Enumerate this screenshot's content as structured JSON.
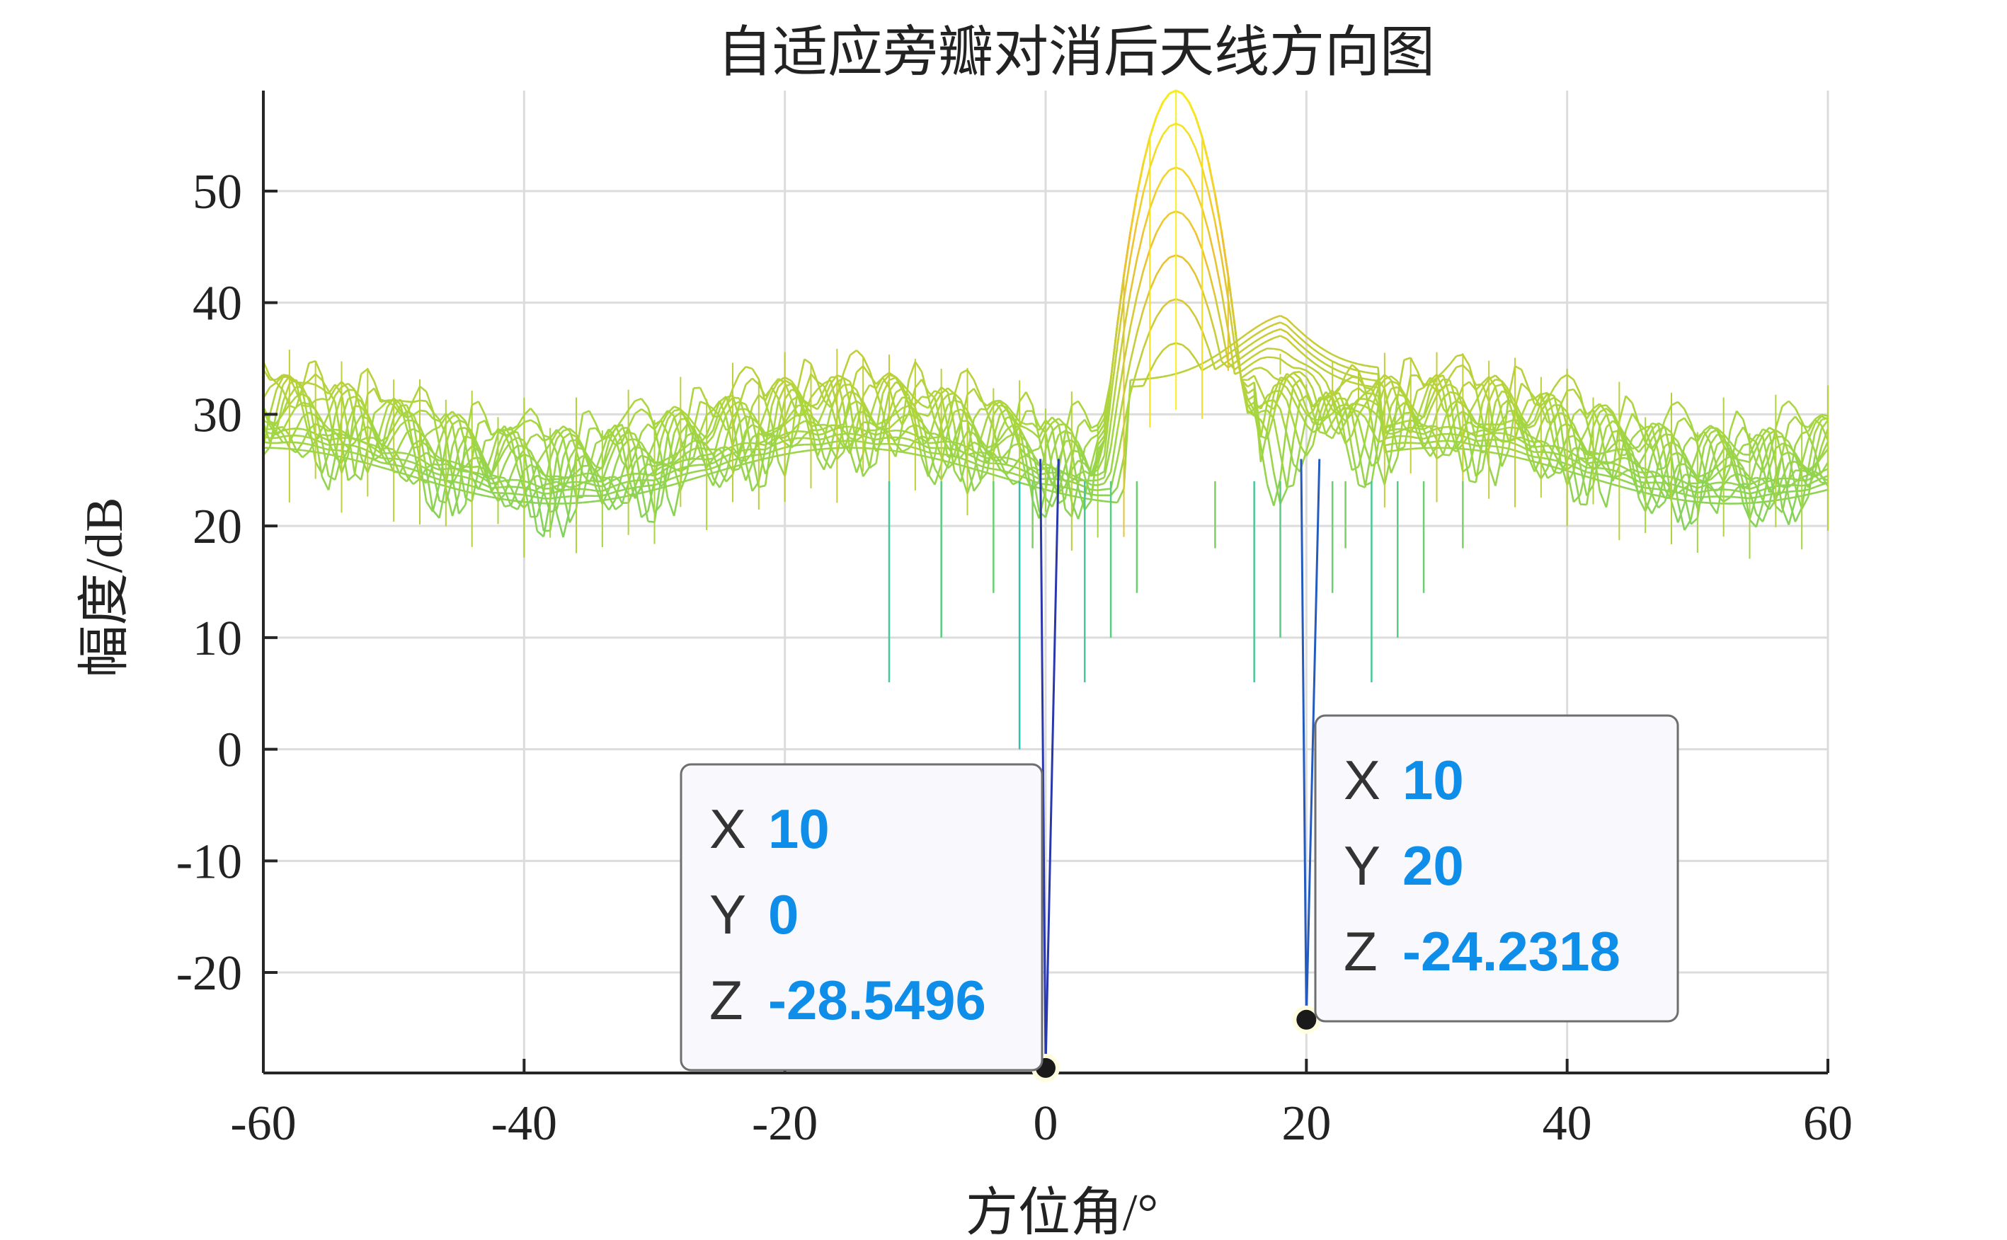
{
  "chart_data": {
    "type": "surface-mesh",
    "title": "自适应旁瓣对消后天线方向图",
    "xlabel": "方位角/°",
    "ylabel": "幅度/dB",
    "xlim": [
      -60,
      60
    ],
    "ylim": [
      -29,
      59
    ],
    "xticks": [
      "-60",
      "-40",
      "-20",
      "0",
      "20",
      "40",
      "60"
    ],
    "yticks": [
      "-20",
      "-10",
      "0",
      "10",
      "20",
      "30",
      "40",
      "50"
    ],
    "xtick_values": [
      -60,
      -40,
      -20,
      0,
      20,
      40,
      60
    ],
    "ytick_values": [
      -20,
      -10,
      0,
      10,
      20,
      30,
      40,
      50
    ],
    "grid": true,
    "colormap": [
      "#2c2ca8",
      "#1aa6e0",
      "#2bc4b6",
      "#6fd06a",
      "#a9d63e",
      "#f0c030",
      "#f7f01e"
    ],
    "main_lobe": {
      "azimuth": 10,
      "peak_db": 59
    },
    "sidelobe_level_db": 30,
    "nulls": [
      {
        "azimuth": 0,
        "depth_db": -28.5496
      },
      {
        "azimuth": 20,
        "depth_db": -24.2318
      }
    ],
    "datatips": [
      {
        "x_label": "X",
        "x": "10",
        "y_label": "Y",
        "y": "0",
        "z_label": "Z",
        "z": "-28.5496",
        "point_x": 0,
        "point_db": -28.5496
      },
      {
        "x_label": "X",
        "x": "10",
        "y_label": "Y",
        "y": "20",
        "z_label": "Z",
        "z": "-24.2318",
        "point_x": 20,
        "point_db": -24.2318
      }
    ]
  }
}
